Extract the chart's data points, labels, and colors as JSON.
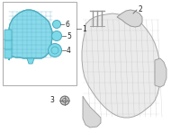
{
  "bg_color": "#ffffff",
  "figsize": [
    2.0,
    1.47
  ],
  "dpi": 100,
  "box_color": "#aaaaaa",
  "teal_fill": "#7dd8e8",
  "teal_edge": "#4aacbe",
  "teal_grid": "#55aacc",
  "engine_fill": "#e8e8e8",
  "engine_edge": "#999999",
  "engine_line": "#aaaaaa"
}
